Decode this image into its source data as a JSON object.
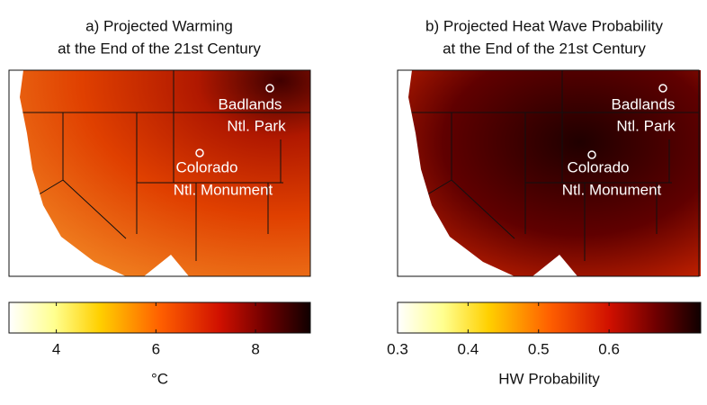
{
  "panels": [
    {
      "title_lines": [
        "a) Projected Warming",
        "at the End of the 21st Century"
      ],
      "sites": [
        {
          "label_lines": [
            "Badlands",
            "Ntl. Park"
          ]
        },
        {
          "label_lines": [
            "Colorado",
            "Ntl. Monument"
          ]
        }
      ],
      "colorbar": {
        "lim": [
          3.05,
          9.1
        ],
        "ticks": [
          4,
          6,
          8
        ],
        "label": "°C"
      }
    },
    {
      "title_lines": [
        "b) Projected Heat Wave Probability",
        "at the End of the 21st Century"
      ],
      "sites": [
        {
          "label_lines": [
            "Badlands",
            "Ntl. Park"
          ]
        },
        {
          "label_lines": [
            "Colorado",
            "Ntl. Monument"
          ]
        }
      ],
      "colorbar": {
        "lim": [
          0.3,
          0.73
        ],
        "ticks": [
          0.3,
          0.4,
          0.5,
          0.6
        ],
        "label": "HW Probability"
      }
    }
  ]
}
